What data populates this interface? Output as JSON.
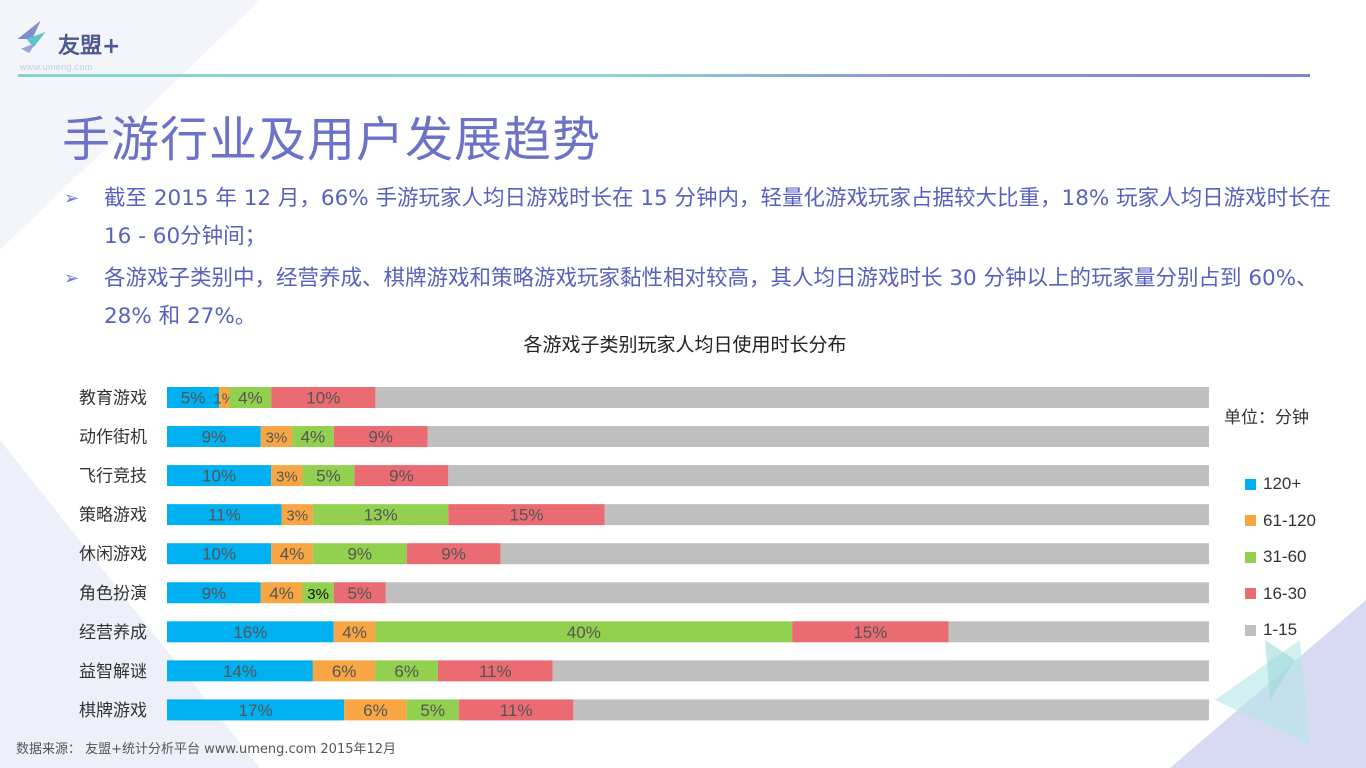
{
  "header": {
    "logo_text": "友盟+",
    "logo_url": "www.umeng.com"
  },
  "title": "手游行业及用户发展趋势",
  "bullets": [
    {
      "text": "截至 2015 年 12 月，66% 手游玩家人均日游戏时长在 15 分钟内，轻量化游戏玩家占据较大比重，18% 玩家人均日游戏时长在 16 - 60分钟间；"
    },
    {
      "text": "各游戏子类别中，经营养成、棋牌游戏和策略游戏玩家黏性相对较高，其人均日游戏时长 30 分钟以上的玩家量分别占到 60%、28% 和 27%。"
    }
  ],
  "unit_label": "单位：分钟",
  "source": "数据来源： 友盟+统计分析平台 www.umeng.com 2015年12月",
  "chart_data": {
    "type": "bar",
    "orientation": "horizontal",
    "stacked": true,
    "title": "各游戏子类别玩家人均日使用时长分布",
    "unit": "单位：分钟",
    "legend_position": "right",
    "categories": [
      "教育游戏",
      "动作街机",
      "飞行竞技",
      "策略游戏",
      "休闲游戏",
      "角色扮演",
      "经营养成",
      "益智解谜",
      "棋牌游戏"
    ],
    "series": [
      {
        "name": "120+",
        "color": "#00b0f0",
        "values": [
          5,
          9,
          10,
          11,
          10,
          9,
          16,
          14,
          17
        ]
      },
      {
        "name": "61-120",
        "color": "#f8a544",
        "values": [
          1,
          3,
          3,
          3,
          4,
          4,
          4,
          6,
          6
        ]
      },
      {
        "name": "31-60",
        "color": "#92d050",
        "values": [
          4,
          4,
          5,
          13,
          9,
          3,
          40,
          6,
          5
        ]
      },
      {
        "name": "16-30",
        "color": "#eb6b73",
        "values": [
          10,
          9,
          9,
          15,
          9,
          5,
          15,
          11,
          11
        ]
      },
      {
        "name": "1-15",
        "color": "#bfbfbf",
        "values": [
          80,
          75,
          73,
          58,
          68,
          79,
          25,
          63,
          61
        ]
      }
    ],
    "labeled_series_count": 4,
    "xlim": [
      0,
      100
    ]
  }
}
